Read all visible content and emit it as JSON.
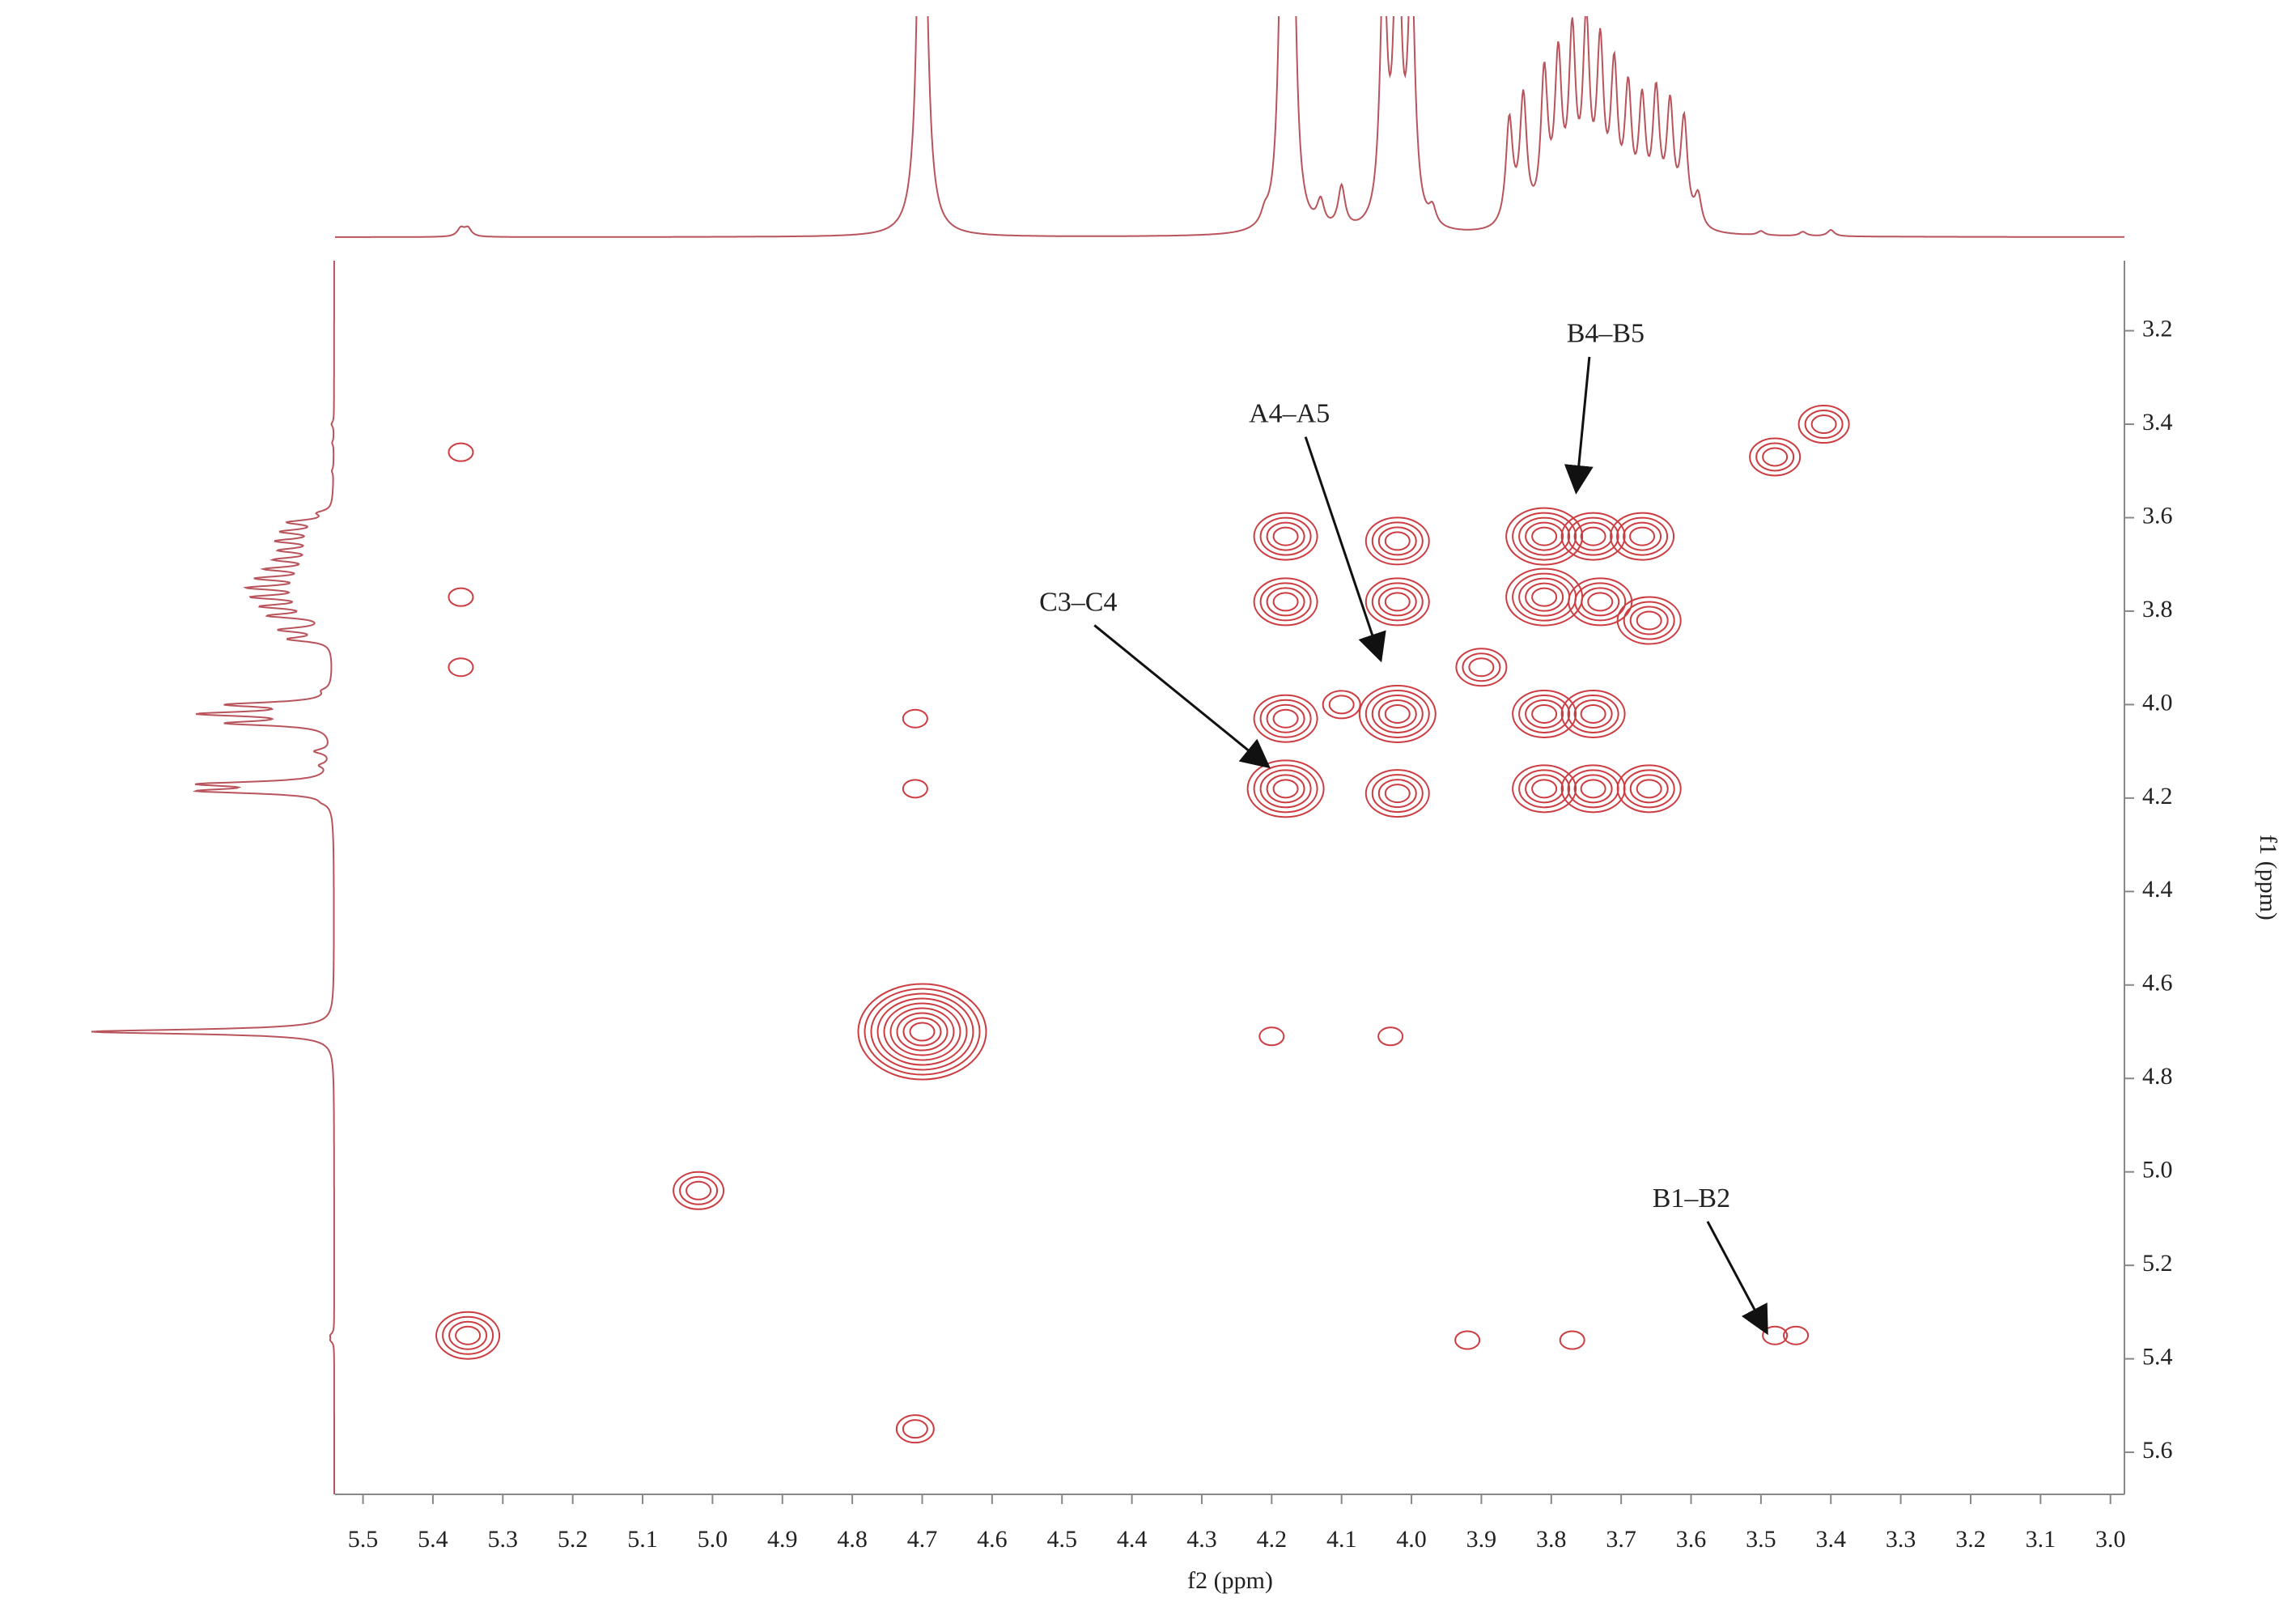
{
  "chart_data": {
    "type": "nmr2d",
    "x_label": "f2 (ppm)",
    "y_label": "f1 (ppm)",
    "xlim": [
      5.54,
      2.98
    ],
    "ylim": [
      3.05,
      5.69
    ],
    "xticks": [
      5.5,
      5.4,
      5.3,
      5.2,
      5.1,
      {
        "value": 5.0,
        "label": "5.0"
      },
      4.9,
      4.8,
      4.7,
      4.6,
      4.5,
      4.4,
      4.3,
      4.2,
      4.1,
      {
        "value": 4.0,
        "label": "4.0"
      },
      3.9,
      3.8,
      3.7,
      3.6,
      3.5,
      3.4,
      3.3,
      3.2,
      3.1,
      {
        "value": 3.0,
        "label": "3.0"
      }
    ],
    "yticks": [
      3.2,
      3.4,
      3.6,
      3.8,
      {
        "value": 4.0,
        "label": "4.0"
      },
      4.2,
      4.4,
      4.6,
      4.8,
      {
        "value": 5.0,
        "label": "5.0"
      },
      5.2,
      5.4,
      5.6
    ],
    "color": "#cc3d42",
    "projection_color": "#b9545c",
    "peaks": {
      "x": [
        3.41,
        3.48,
        3.81,
        3.74,
        3.67,
        3.81,
        3.73,
        3.66,
        4.18,
        4.18,
        4.18,
        4.18,
        4.02,
        4.02,
        4.02,
        4.02,
        3.81,
        3.74,
        3.81,
        3.74,
        3.66,
        4.7,
        5.02,
        5.35,
        5.36,
        5.36,
        5.36,
        4.71,
        4.71,
        4.71,
        3.48,
        3.45,
        3.92,
        3.77,
        4.2,
        4.03,
        3.9,
        4.1
      ],
      "y": [
        3.4,
        3.47,
        3.64,
        3.64,
        3.64,
        3.77,
        3.78,
        3.82,
        3.64,
        3.78,
        4.03,
        4.18,
        3.65,
        3.78,
        4.02,
        4.19,
        4.02,
        4.02,
        4.18,
        4.18,
        4.18,
        4.7,
        5.04,
        5.35,
        3.46,
        3.77,
        3.92,
        4.03,
        4.18,
        5.55,
        5.35,
        5.35,
        5.36,
        5.36,
        4.71,
        4.71,
        3.92,
        4.0
      ],
      "intensity": [
        3,
        3,
        5,
        4,
        4,
        5,
        4,
        4,
        4,
        4,
        4,
        5,
        4,
        4,
        5,
        4,
        4,
        4,
        4,
        4,
        4,
        9,
        3,
        4,
        1,
        1,
        1,
        1,
        1,
        2,
        1,
        1,
        1,
        1,
        1,
        1,
        3,
        2
      ]
    },
    "projection": {
      "ppm": [
        5.36,
        5.35,
        4.7,
        4.21,
        4.185,
        4.17,
        4.13,
        4.1,
        4.04,
        4.02,
        4.0,
        3.97,
        3.86,
        3.84,
        3.81,
        3.79,
        3.77,
        3.75,
        3.73,
        3.71,
        3.69,
        3.67,
        3.65,
        3.63,
        3.61,
        3.59,
        3.5,
        3.44,
        3.4
      ],
      "height": [
        0.04,
        0.04,
        3,
        0.05,
        1.5,
        1.5,
        0.12,
        0.2,
        1.2,
        1.5,
        1.2,
        0.08,
        0.5,
        0.6,
        0.7,
        0.75,
        0.85,
        0.9,
        0.8,
        0.7,
        0.6,
        0.55,
        0.6,
        0.55,
        0.5,
        0.15,
        0.02,
        0.02,
        0.03
      ]
    },
    "annotations": {
      "text": [
        "C3–C4",
        "A4–A5",
        "B4–B5",
        "B1–B2"
      ],
      "x": [
        4.207,
        4.045,
        3.764,
        3.493
      ],
      "y": [
        4.13,
        3.9,
        3.54,
        5.34
      ]
    }
  }
}
